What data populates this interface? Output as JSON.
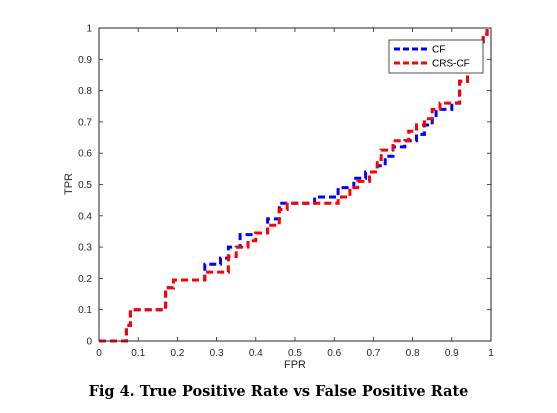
{
  "caption": "Fig 4. True Positive Rate vs False Positive Rate",
  "chart_data": {
    "type": "line",
    "title": "",
    "xlabel": "FPR",
    "ylabel": "TPR",
    "xlim": [
      0,
      1
    ],
    "ylim": [
      0,
      1
    ],
    "grid": false,
    "legend_position": "top-right",
    "x_ticks": [
      "0",
      "0.1",
      "0.2",
      "0.3",
      "0.4",
      "0.5",
      "0.6",
      "0.7",
      "0.8",
      "0.9",
      "1"
    ],
    "y_ticks": [
      "0",
      "0.1",
      "0.2",
      "0.3",
      "0.4",
      "0.5",
      "0.6",
      "0.7",
      "0.8",
      "0.9",
      "1"
    ],
    "series": [
      {
        "name": "CF",
        "color": "#0000ff",
        "line_style": "dashed",
        "points": [
          [
            0,
            0
          ],
          [
            0.07,
            0
          ],
          [
            0.07,
            0.05
          ],
          [
            0.08,
            0.05
          ],
          [
            0.08,
            0.1
          ],
          [
            0.17,
            0.1
          ],
          [
            0.17,
            0.17
          ],
          [
            0.19,
            0.17
          ],
          [
            0.19,
            0.195
          ],
          [
            0.27,
            0.195
          ],
          [
            0.27,
            0.245
          ],
          [
            0.31,
            0.245
          ],
          [
            0.31,
            0.265
          ],
          [
            0.33,
            0.265
          ],
          [
            0.33,
            0.3
          ],
          [
            0.36,
            0.3
          ],
          [
            0.36,
            0.34
          ],
          [
            0.4,
            0.34
          ],
          [
            0.4,
            0.345
          ],
          [
            0.43,
            0.345
          ],
          [
            0.43,
            0.39
          ],
          [
            0.46,
            0.39
          ],
          [
            0.46,
            0.44
          ],
          [
            0.55,
            0.44
          ],
          [
            0.55,
            0.46
          ],
          [
            0.61,
            0.46
          ],
          [
            0.61,
            0.49
          ],
          [
            0.65,
            0.49
          ],
          [
            0.65,
            0.52
          ],
          [
            0.68,
            0.52
          ],
          [
            0.68,
            0.54
          ],
          [
            0.71,
            0.54
          ],
          [
            0.71,
            0.56
          ],
          [
            0.73,
            0.56
          ],
          [
            0.73,
            0.59
          ],
          [
            0.75,
            0.59
          ],
          [
            0.75,
            0.62
          ],
          [
            0.78,
            0.62
          ],
          [
            0.78,
            0.64
          ],
          [
            0.81,
            0.64
          ],
          [
            0.81,
            0.66
          ],
          [
            0.83,
            0.66
          ],
          [
            0.83,
            0.69
          ],
          [
            0.85,
            0.69
          ],
          [
            0.85,
            0.71
          ],
          [
            0.86,
            0.71
          ],
          [
            0.86,
            0.74
          ],
          [
            0.9,
            0.74
          ],
          [
            0.9,
            0.76
          ],
          [
            0.92,
            0.76
          ],
          [
            0.92,
            0.83
          ],
          [
            0.94,
            0.83
          ],
          [
            0.94,
            0.95
          ],
          [
            0.98,
            0.95
          ],
          [
            0.98,
            0.98
          ],
          [
            0.99,
            0.98
          ],
          [
            0.99,
            1
          ]
        ]
      },
      {
        "name": "CRS-CF",
        "color": "#ff0000",
        "line_style": "dashed",
        "points": [
          [
            0,
            0
          ],
          [
            0.07,
            0
          ],
          [
            0.07,
            0.05
          ],
          [
            0.08,
            0.05
          ],
          [
            0.08,
            0.1
          ],
          [
            0.17,
            0.1
          ],
          [
            0.17,
            0.17
          ],
          [
            0.19,
            0.17
          ],
          [
            0.19,
            0.195
          ],
          [
            0.27,
            0.195
          ],
          [
            0.27,
            0.22
          ],
          [
            0.33,
            0.22
          ],
          [
            0.33,
            0.27
          ],
          [
            0.35,
            0.27
          ],
          [
            0.35,
            0.3
          ],
          [
            0.38,
            0.3
          ],
          [
            0.38,
            0.32
          ],
          [
            0.4,
            0.32
          ],
          [
            0.4,
            0.345
          ],
          [
            0.43,
            0.345
          ],
          [
            0.43,
            0.37
          ],
          [
            0.46,
            0.37
          ],
          [
            0.46,
            0.42
          ],
          [
            0.48,
            0.42
          ],
          [
            0.48,
            0.44
          ],
          [
            0.61,
            0.44
          ],
          [
            0.61,
            0.46
          ],
          [
            0.64,
            0.46
          ],
          [
            0.64,
            0.49
          ],
          [
            0.66,
            0.49
          ],
          [
            0.66,
            0.51
          ],
          [
            0.69,
            0.51
          ],
          [
            0.69,
            0.54
          ],
          [
            0.71,
            0.54
          ],
          [
            0.71,
            0.58
          ],
          [
            0.72,
            0.58
          ],
          [
            0.72,
            0.61
          ],
          [
            0.75,
            0.61
          ],
          [
            0.75,
            0.64
          ],
          [
            0.79,
            0.64
          ],
          [
            0.79,
            0.67
          ],
          [
            0.81,
            0.67
          ],
          [
            0.81,
            0.69
          ],
          [
            0.83,
            0.69
          ],
          [
            0.83,
            0.71
          ],
          [
            0.85,
            0.71
          ],
          [
            0.85,
            0.74
          ],
          [
            0.87,
            0.74
          ],
          [
            0.87,
            0.76
          ],
          [
            0.92,
            0.76
          ],
          [
            0.92,
            0.83
          ],
          [
            0.94,
            0.83
          ],
          [
            0.94,
            0.95
          ],
          [
            0.98,
            0.95
          ],
          [
            0.98,
            0.98
          ],
          [
            0.99,
            0.98
          ],
          [
            0.99,
            1
          ]
        ]
      }
    ]
  }
}
